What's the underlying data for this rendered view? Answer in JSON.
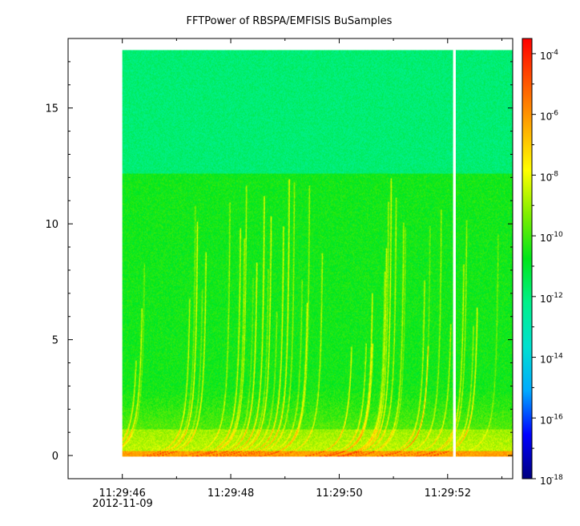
{
  "chart_data": {
    "type": "heatmap",
    "title": "FFTPower of RBSPA/EMFISIS  BuSamples",
    "xlabel": "",
    "ylabel": "",
    "x_ticks": [
      "11:29:46",
      "11:29:48",
      "11:29:50",
      "11:29:52"
    ],
    "x_tick_seconds": [
      46,
      48,
      50,
      52
    ],
    "x_date_label": "2012-11-09",
    "xlim_seconds": [
      45.0,
      53.2
    ],
    "data_start_seconds": 46.0,
    "data_end_seconds": 53.2,
    "gap_seconds": [
      52.1,
      52.15
    ],
    "y_ticks": [
      0,
      5,
      10,
      15
    ],
    "ylim": [
      -1,
      18
    ],
    "data_ymax": 17.5,
    "noise_floor_upper_freq": 12.2,
    "z_scale": "log",
    "zlim_exponent": [
      -18,
      -3.5
    ],
    "colorbar_tick_base": "10",
    "colorbar_tick_exponents": [
      "-4",
      "-6",
      "-8",
      "-10",
      "-12",
      "-14",
      "-16",
      "-18"
    ],
    "colorbar_exponent_values": [
      -4,
      -6,
      -8,
      -10,
      -12,
      -14,
      -16,
      -18
    ],
    "colormap": [
      "#00007f",
      "#0000ff",
      "#00aaff",
      "#00e0d0",
      "#00f08a",
      "#00e61a",
      "#7fee00",
      "#ffff00",
      "#ffaa00",
      "#ff5500",
      "#ff0000"
    ]
  }
}
